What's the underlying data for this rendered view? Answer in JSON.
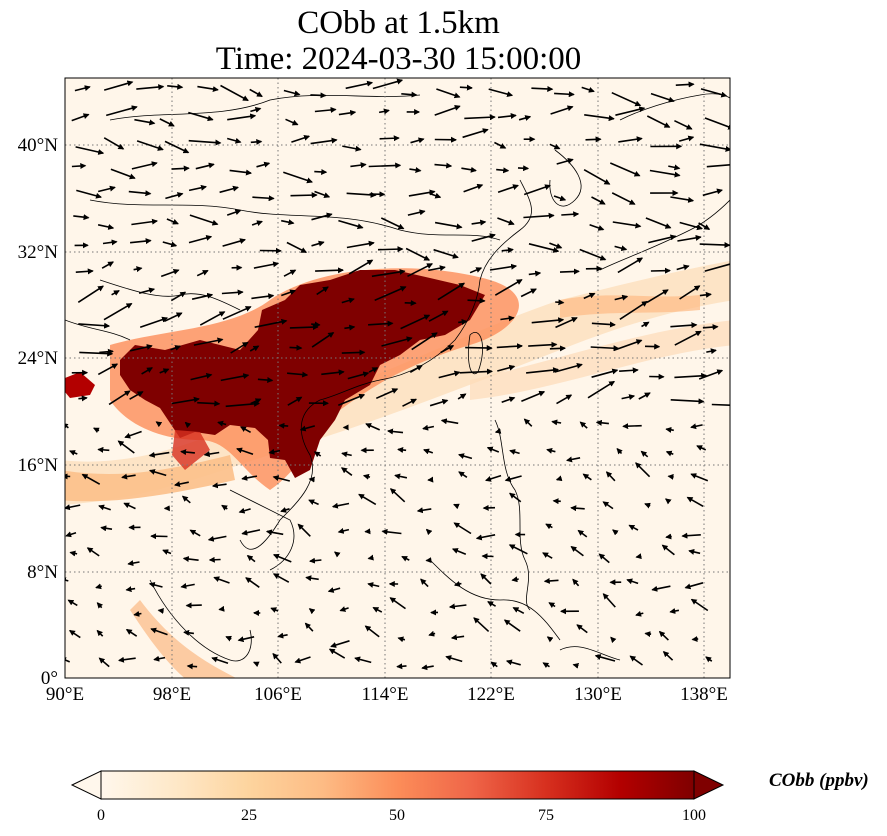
{
  "chart_data": {
    "type": "heatmap",
    "title_line1": "CObb at 1.5km",
    "title_line2": "Time: 2024-03-30 15:00:00",
    "x_ticks": [
      "90°E",
      "98°E",
      "106°E",
      "114°E",
      "122°E",
      "130°E",
      "138°E"
    ],
    "y_ticks": [
      "0°",
      "8°N",
      "16°N",
      "24°N",
      "32°N",
      "40°N"
    ],
    "x_range": [
      90,
      140
    ],
    "y_range": [
      0,
      45
    ],
    "colorbar": {
      "label": "CObb (ppbv)",
      "ticks": [
        "0",
        "25",
        "50",
        "75",
        "100"
      ],
      "range": [
        0,
        100
      ],
      "colormap": "OrRd",
      "extend": "both"
    },
    "grid": true,
    "overlay": "wind vectors",
    "colors": {
      "high": "#7f0000",
      "mid": "#ef6548",
      "low": "#fdd49e",
      "zero": "#fff7ec"
    }
  }
}
